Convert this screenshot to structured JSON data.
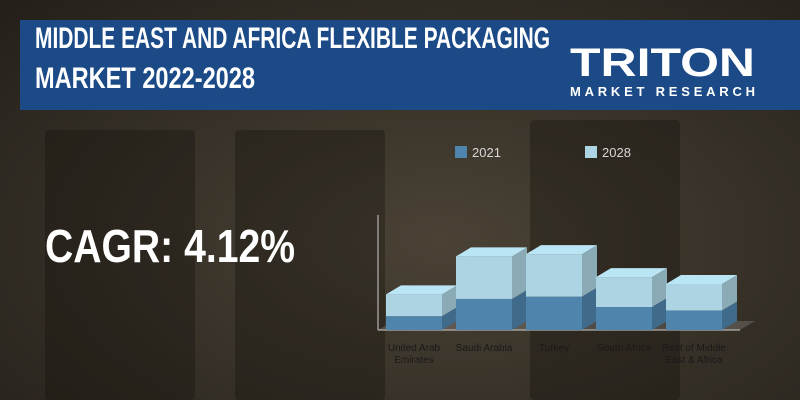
{
  "chart_data": {
    "type": "bar3d_stacked",
    "title": [
      "MIDDLE EAST AND AFRICA FLEXIBLE PACKAGING",
      "MARKET 2022-2028"
    ],
    "logo": {
      "name": "TRITON",
      "tagline": "MARKET RESEARCH"
    },
    "annotation": "CAGR: 4.12%",
    "categories": [
      "United Arab Emirates",
      "Saudi Arabia",
      "Turkey",
      "South Africa",
      "Rest of Middle East & Africa"
    ],
    "series": [
      {
        "name": "2021",
        "color": "#4f84ad",
        "values": [
          12,
          27,
          29,
          20,
          17
        ]
      },
      {
        "name": "2028",
        "color": "#acd4e2",
        "values": [
          19,
          37,
          37,
          26,
          23
        ]
      }
    ],
    "ylim": [
      0,
      100
    ]
  }
}
